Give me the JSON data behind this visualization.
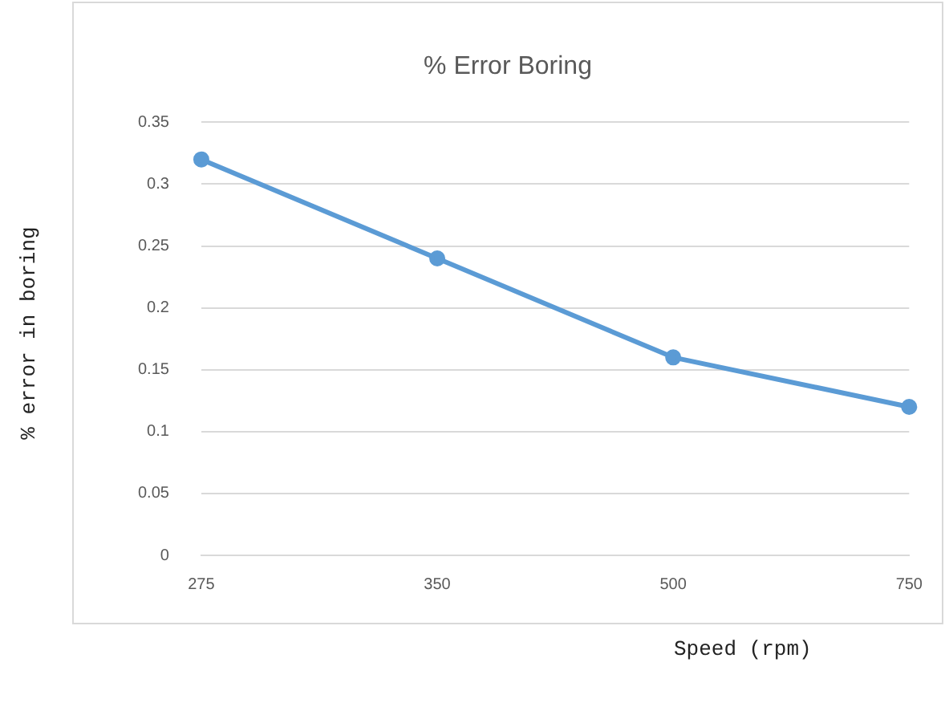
{
  "chart_data": {
    "type": "line",
    "title": "% Error Boring",
    "xlabel": "Speed (rpm)",
    "ylabel": "% error in boring",
    "categories": [
      "275",
      "350",
      "500",
      "750"
    ],
    "series": [
      {
        "color": "#5b9bd5",
        "values": [
          0.32,
          0.24,
          0.16,
          0.12
        ]
      }
    ],
    "ylim": [
      0,
      0.35
    ],
    "yticks": [
      0,
      0.05,
      0.1,
      0.15,
      0.2,
      0.25,
      0.3,
      0.35
    ],
    "grid": "y",
    "marker": "circle",
    "line_style": "solid",
    "legend": false
  }
}
